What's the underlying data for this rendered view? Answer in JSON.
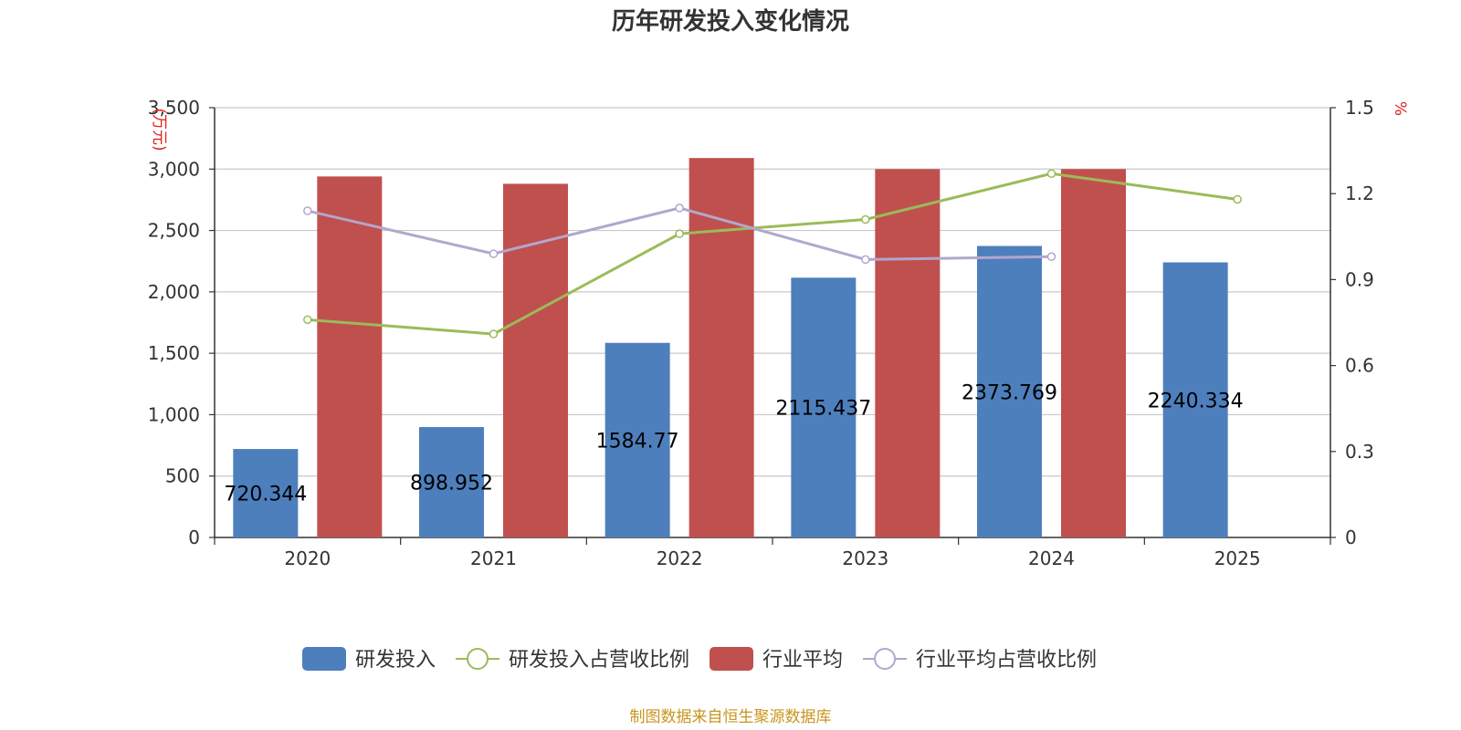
{
  "chart_data": {
    "title": "历年研发投入变化情况",
    "type": "bar",
    "categories": [
      "2020",
      "2021",
      "2022",
      "2023",
      "2024",
      "2025"
    ],
    "y_left": {
      "unit": "(万元)",
      "min": 0,
      "max": 3500,
      "ticks": [
        "0",
        "500",
        "1,000",
        "1,500",
        "2,000",
        "2,500",
        "3,000",
        "3,500"
      ],
      "tick_values": [
        0,
        500,
        1000,
        1500,
        2000,
        2500,
        3000,
        3500
      ]
    },
    "y_right": {
      "unit": "%",
      "min": 0,
      "max": 1.5,
      "ticks": [
        "0",
        "0.3",
        "0.6",
        "0.9",
        "1.2",
        "1.5"
      ],
      "tick_values": [
        0,
        0.3,
        0.6,
        0.9,
        1.2,
        1.5
      ]
    },
    "series": [
      {
        "name": "研发投入",
        "kind": "bar",
        "axis": "left",
        "color": "#4e7fbd",
        "values": [
          720.344,
          898.952,
          1584.77,
          2115.437,
          2373.769,
          2240.334
        ],
        "labels": [
          "720.344",
          "898.952",
          "1584.77",
          "2115.437",
          "2373.769",
          "2240.334"
        ]
      },
      {
        "name": "研发投入占营收比例",
        "kind": "line",
        "axis": "right",
        "color": "#9bbb59",
        "values": [
          0.76,
          0.71,
          1.06,
          1.11,
          1.27,
          1.18
        ]
      },
      {
        "name": "行业平均",
        "kind": "bar",
        "axis": "left",
        "color": "#c0504d",
        "values": [
          2940,
          2880,
          3090,
          3000,
          3000,
          null
        ]
      },
      {
        "name": "行业平均占营收比例",
        "kind": "line",
        "axis": "right",
        "color": "#b3a6cc",
        "values": [
          1.14,
          0.99,
          1.15,
          0.97,
          0.98,
          null
        ]
      }
    ],
    "grid": true,
    "legend_position": "bottom"
  },
  "footer": {
    "source": "制图数据来自恒生聚源数据库"
  }
}
